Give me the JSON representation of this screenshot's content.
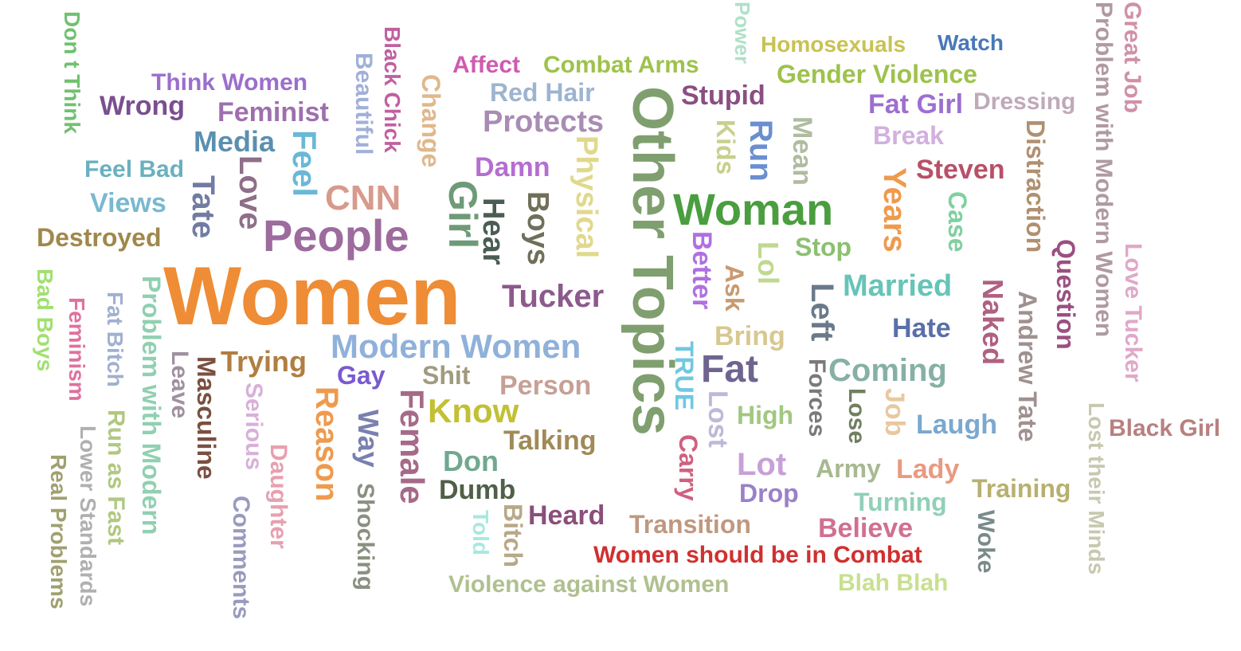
{
  "words": [
    {
      "text": "Women",
      "color": "#ef8c36"
    },
    {
      "text": "Other Topics",
      "color": "#7f9f6f"
    },
    {
      "text": "People",
      "color": "#9d6b9d"
    },
    {
      "text": "Woman",
      "color": "#4a9e3f"
    },
    {
      "text": "Girl",
      "color": "#6f9a78"
    },
    {
      "text": "Modern Women",
      "color": "#8fb1da"
    },
    {
      "text": "Fat",
      "color": "#6f6490"
    },
    {
      "text": "Coming",
      "color": "#86b0a6"
    },
    {
      "text": "CNN",
      "color": "#d89a8c"
    },
    {
      "text": "Tucker",
      "color": "#8c5a8c"
    },
    {
      "text": "Protects",
      "color": "#a98cb3"
    },
    {
      "text": "Know",
      "color": "#c2c034"
    },
    {
      "text": "Married",
      "color": "#66c4b8"
    },
    {
      "text": "Female",
      "color": "#a66a88"
    },
    {
      "text": "Reason",
      "color": "#ef9a4c"
    },
    {
      "text": "Love",
      "color": "#8f6f87"
    },
    {
      "text": "Tate",
      "color": "#727ba2"
    },
    {
      "text": "Years",
      "color": "#ef9a4c"
    },
    {
      "text": "Feminist",
      "color": "#9e6fad"
    },
    {
      "text": "Destroyed",
      "color": "#a0884c"
    },
    {
      "text": "Stupid",
      "color": "#8a4f82"
    },
    {
      "text": "Run",
      "color": "#6a8fd0"
    },
    {
      "text": "Trying",
      "color": "#b07e40"
    },
    {
      "text": "Talking",
      "color": "#a08a58"
    },
    {
      "text": "Person",
      "color": "#c7a095"
    },
    {
      "text": "Gender Violence",
      "color": "#9ec24c"
    },
    {
      "text": "Combat Arms",
      "color": "#9ec24c"
    },
    {
      "text": "Homosexuals",
      "color": "#c9c253"
    },
    {
      "text": "Watch",
      "color": "#4978b8"
    },
    {
      "text": "Steven",
      "color": "#b85068"
    },
    {
      "text": "Fat Girl",
      "color": "#9e6fd0"
    },
    {
      "text": "Dressing",
      "color": "#bfaab9"
    },
    {
      "text": "Break",
      "color": "#d2b0df"
    },
    {
      "text": "Wrong",
      "color": "#7a4f8f"
    },
    {
      "text": "Think Women",
      "color": "#9b6fcb"
    },
    {
      "text": "Media",
      "color": "#5b8fb0"
    },
    {
      "text": "Feel Bad",
      "color": "#6ab0c0"
    },
    {
      "text": "Views",
      "color": "#7ab8d0"
    },
    {
      "text": "Feel",
      "color": "#6ab8d8"
    },
    {
      "text": "Affect",
      "color": "#d05ab0"
    },
    {
      "text": "Red Hair",
      "color": "#9db4d0"
    },
    {
      "text": "Damn",
      "color": "#b56ed0"
    },
    {
      "text": "Physical",
      "color": "#e0d98c"
    },
    {
      "text": "Boys",
      "color": "#70705a"
    },
    {
      "text": "Hear",
      "color": "#4a5d52"
    },
    {
      "text": "Change",
      "color": "#e0b88c"
    },
    {
      "text": "Beautiful",
      "color": "#a0b0d8"
    },
    {
      "text": "Black Chick",
      "color": "#c060a0"
    },
    {
      "text": "Power",
      "color": "#b0e0c8"
    },
    {
      "text": "Kids",
      "color": "#c8d08c"
    },
    {
      "text": "Mean",
      "color": "#b0bca0"
    },
    {
      "text": "Stop",
      "color": "#8cc070"
    },
    {
      "text": "Lol",
      "color": "#c0d890"
    },
    {
      "text": "Better",
      "color": "#b070e0"
    },
    {
      "text": "Ask",
      "color": "#c89a70"
    },
    {
      "text": "Bring",
      "color": "#d8c890"
    },
    {
      "text": "Left",
      "color": "#6a7a8a"
    },
    {
      "text": "Hate",
      "color": "#5a6fa8"
    },
    {
      "text": "Case",
      "color": "#80d0a0"
    },
    {
      "text": "Naked",
      "color": "#b06080"
    },
    {
      "text": "Distraction",
      "color": "#b09070"
    },
    {
      "text": "Andrew Tate",
      "color": "#a09090"
    },
    {
      "text": "Question",
      "color": "#9a5080"
    },
    {
      "text": "Problem with Modern Women",
      "color": "#b09aa0"
    },
    {
      "text": "Great Job",
      "color": "#d090a8"
    },
    {
      "text": "Love Tucker",
      "color": "#e0a8c8"
    },
    {
      "text": "Lost their Minds",
      "color": "#c8c8b0"
    },
    {
      "text": "Black Girl",
      "color": "#b88080"
    },
    {
      "text": "Laugh",
      "color": "#7aa8d0"
    },
    {
      "text": "Job",
      "color": "#e8c8a0"
    },
    {
      "text": "Lose",
      "color": "#708060"
    },
    {
      "text": "Forces",
      "color": "#7a7a7a"
    },
    {
      "text": "Army",
      "color": "#a8b890"
    },
    {
      "text": "Lady",
      "color": "#e89a80"
    },
    {
      "text": "Training",
      "color": "#b8b070"
    },
    {
      "text": "Turning",
      "color": "#90d0b8"
    },
    {
      "text": "Believe",
      "color": "#d07090"
    },
    {
      "text": "Woke",
      "color": "#7a8a8a"
    },
    {
      "text": "Blah Blah",
      "color": "#c8e090"
    },
    {
      "text": "Women should be in Combat",
      "color": "#d03030"
    },
    {
      "text": "Transition",
      "color": "#c09880"
    },
    {
      "text": "Violence against Women",
      "color": "#b0c090"
    },
    {
      "text": "Heard",
      "color": "#8a4f7a"
    },
    {
      "text": "Lot",
      "color": "#c8a0d8"
    },
    {
      "text": "Drop",
      "color": "#9a80c8"
    },
    {
      "text": "High",
      "color": "#a0c880"
    },
    {
      "text": "TRUE",
      "color": "#70c8e0"
    },
    {
      "text": "Lost",
      "color": "#c0b8d8"
    },
    {
      "text": "Carry",
      "color": "#d06080"
    },
    {
      "text": "Shit",
      "color": "#a09a80"
    },
    {
      "text": "Gay",
      "color": "#7a5ad0"
    },
    {
      "text": "Don",
      "color": "#70a890"
    },
    {
      "text": "Dumb",
      "color": "#506048"
    },
    {
      "text": "Bitch",
      "color": "#b8a888"
    },
    {
      "text": "Told",
      "color": "#a8e8e0"
    },
    {
      "text": "Way",
      "color": "#7a80b0"
    },
    {
      "text": "Shocking",
      "color": "#8a9080"
    },
    {
      "text": "Daughter",
      "color": "#e8a0b0"
    },
    {
      "text": "Serious",
      "color": "#d8b0d8"
    },
    {
      "text": "Comments",
      "color": "#9a9ac0"
    },
    {
      "text": "Masculine",
      "color": "#7a5040"
    },
    {
      "text": "Leave",
      "color": "#a090a0"
    },
    {
      "text": "Problem with Modern",
      "color": "#90d0b0"
    },
    {
      "text": "Fat Bitch",
      "color": "#a0b0d0"
    },
    {
      "text": "Run as Fast",
      "color": "#b0c880"
    },
    {
      "text": "Lower Standards",
      "color": "#b0b0b0"
    },
    {
      "text": "Real Problems",
      "color": "#a0a070"
    },
    {
      "text": "Feminism",
      "color": "#e070a0"
    },
    {
      "text": "Bad Boys",
      "color": "#a0e070"
    },
    {
      "text": "Don t Think",
      "color": "#70c070"
    }
  ]
}
